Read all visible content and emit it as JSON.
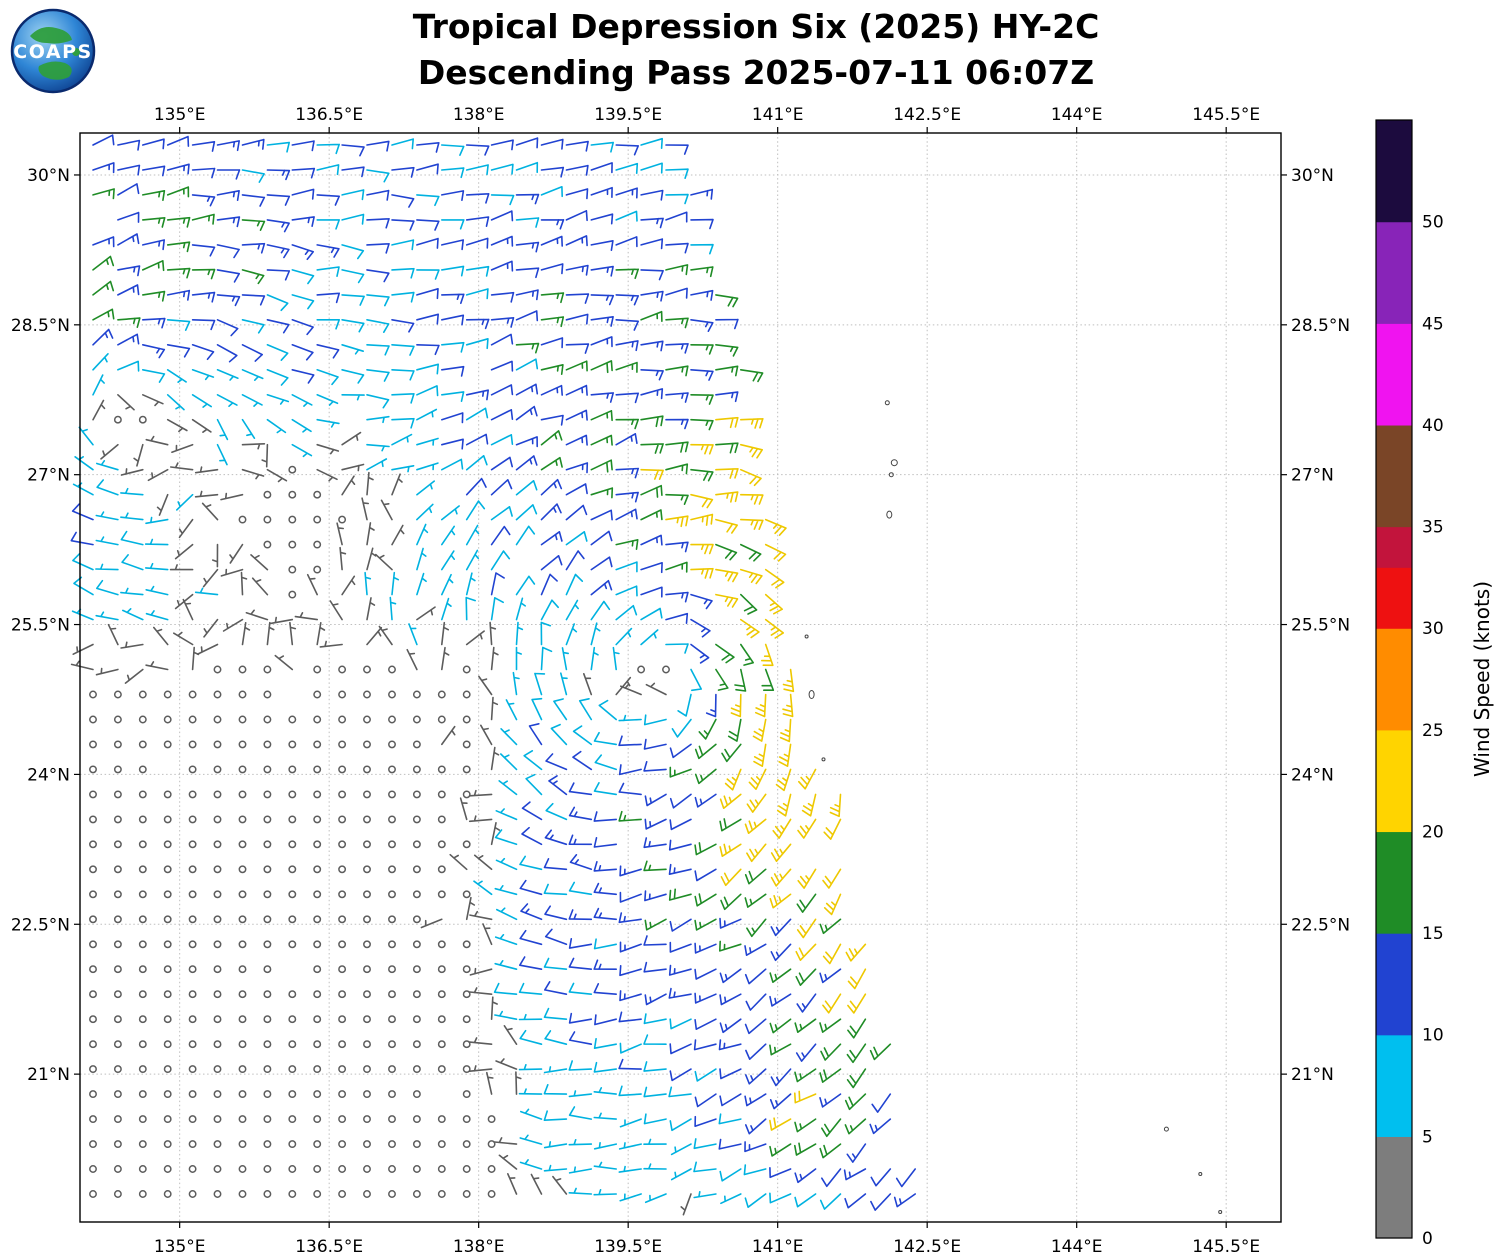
{
  "header": {
    "logo_text": "COAPS",
    "title_line1": "Tropical Depression Six (2025) HY-2C",
    "title_line2": "Descending Pass 2025-07-11 06:07Z"
  },
  "chart_data": {
    "type": "wind_barb_map",
    "title": "Tropical Depression Six (2025) HY-2C",
    "subtitle": "Descending Pass 2025-07-11 06:07Z",
    "lon_range": [
      134.0,
      146.05
    ],
    "lat_range": [
      19.52,
      30.42
    ],
    "grid_style": "dotted",
    "x_ticks": [
      {
        "value": 135.0,
        "label": "135°E"
      },
      {
        "value": 136.5,
        "label": "136.5°E"
      },
      {
        "value": 138.0,
        "label": "138°E"
      },
      {
        "value": 139.5,
        "label": "139.5°E"
      },
      {
        "value": 141.0,
        "label": "141°E"
      },
      {
        "value": 142.5,
        "label": "142.5°E"
      },
      {
        "value": 144.0,
        "label": "144°E"
      },
      {
        "value": 145.5,
        "label": "145.5°E"
      }
    ],
    "y_ticks": [
      {
        "value": 30.0,
        "label": "30°N"
      },
      {
        "value": 28.5,
        "label": "28.5°N"
      },
      {
        "value": 27.0,
        "label": "27°N"
      },
      {
        "value": 25.5,
        "label": "25.5°N"
      },
      {
        "value": 24.0,
        "label": "24°N"
      },
      {
        "value": 22.5,
        "label": "22.5°N"
      },
      {
        "value": 21.0,
        "label": "21°N"
      }
    ],
    "colorbar": {
      "label": "Wind Speed (knots)",
      "range": [
        0,
        55
      ],
      "ticks": [
        0,
        5,
        10,
        15,
        20,
        25,
        30,
        35,
        40,
        45,
        50
      ],
      "segments": [
        {
          "from": 0,
          "to": 5,
          "color": "#7d7d7d"
        },
        {
          "from": 5,
          "to": 10,
          "color": "#00bfef"
        },
        {
          "from": 10,
          "to": 15,
          "color": "#2143d1"
        },
        {
          "from": 15,
          "to": 20,
          "color": "#1f8c26"
        },
        {
          "from": 20,
          "to": 25,
          "color": "#ffd400"
        },
        {
          "from": 25,
          "to": 30,
          "color": "#ff8c00"
        },
        {
          "from": 30,
          "to": 33,
          "color": "#ee1111"
        },
        {
          "from": 33,
          "to": 35,
          "color": "#c2143c"
        },
        {
          "from": 35,
          "to": 40,
          "color": "#7a4527"
        },
        {
          "from": 40,
          "to": 45,
          "color": "#f013f0"
        },
        {
          "from": 45,
          "to": 50,
          "color": "#8824b8"
        },
        {
          "from": 50,
          "to": 55,
          "color": "#1c0b3e"
        }
      ]
    },
    "wind_field": {
      "grid_spacing": 0.25,
      "staff_length": 22,
      "background": {
        "u": -2.0,
        "v": -0.5
      },
      "vortices": [
        {
          "name": "tropical-depression-six",
          "lon": 139.85,
          "lat": 25.05,
          "strength": 15,
          "radius": 1.9,
          "east_asymmetry": 0.35,
          "inflow": 0.22
        },
        {
          "name": "secondary-eddy",
          "lon": 134.25,
          "lat": 27.85,
          "strength": 10,
          "radius": 1.3,
          "east_asymmetry": 0.0,
          "inflow": 0.22
        }
      ],
      "swath_edge": {
        "lon_at_top": 140.0,
        "slope_per_deg": 0.23,
        "top_lat": 30.42
      },
      "calm_region": {
        "lon_max": 137.9,
        "lat_max": 24.9,
        "soft": 1.4,
        "sharp": 1.8,
        "min_factor": 0.25
      },
      "edge_boost": {
        "width_deg": 1.3,
        "amount": 6,
        "lat_max": 27.5
      },
      "speed_bumps": [
        {
          "lon": 141.0,
          "lat": 24.0,
          "radius": 0.3,
          "amount": 8
        },
        {
          "lon": 141.3,
          "lat": 20.55,
          "radius": 0.45,
          "amount": 9
        }
      ],
      "noise": {
        "speed_low": 0.78,
        "speed_span": 0.5,
        "dir_jitter_calm": 2.8,
        "dir_jitter": 0.5,
        "edge_ragged": 0.3,
        "dropout": 0.015
      },
      "speed_palette": [
        {
          "max": 5,
          "color": "#5c5c5c"
        },
        {
          "max": 10,
          "color": "#00b2e0"
        },
        {
          "max": 15,
          "color": "#2143d1"
        },
        {
          "max": 20,
          "color": "#1f8c26"
        },
        {
          "max": 25,
          "color": "#eec800"
        },
        {
          "max": 99,
          "color": "#ff8c00"
        }
      ],
      "max_speed": 24
    },
    "islands": [
      {
        "lon": 142.1,
        "lat": 27.72,
        "r": 2
      },
      {
        "lon": 142.17,
        "lat": 27.12,
        "r": 3
      },
      {
        "lon": 142.14,
        "lat": 27.0,
        "r": 2
      },
      {
        "lon": 142.12,
        "lat": 26.6,
        "rx": 2.5,
        "ry": 3.5
      },
      {
        "lon": 141.29,
        "lat": 25.38,
        "r": 1.5
      },
      {
        "lon": 141.34,
        "lat": 24.8,
        "rx": 2.5,
        "ry": 4
      },
      {
        "lon": 141.46,
        "lat": 24.15,
        "r": 1.5
      },
      {
        "lon": 144.9,
        "lat": 20.45,
        "r": 2
      },
      {
        "lon": 145.24,
        "lat": 20.0,
        "r": 1.5
      },
      {
        "lon": 145.44,
        "lat": 19.62,
        "r": 1.5
      }
    ]
  }
}
